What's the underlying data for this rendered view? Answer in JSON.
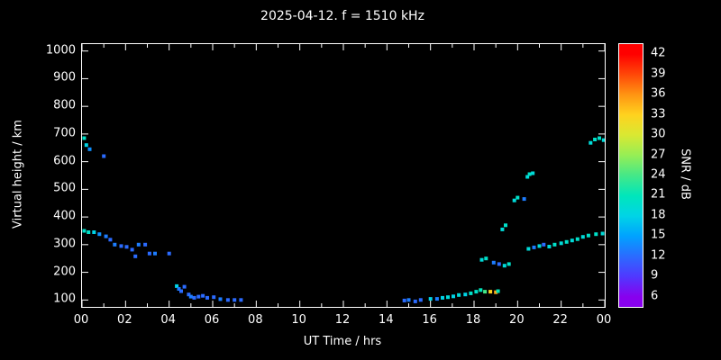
{
  "title": "2025-04-12. f = 1510 kHz",
  "axes": {
    "xlabel": "UT Time / hrs",
    "ylabel": "Virtual height / km",
    "x_tick_labels": [
      "00",
      "02",
      "04",
      "06",
      "08",
      "10",
      "12",
      "14",
      "16",
      "18",
      "20",
      "22",
      "00"
    ],
    "x_tick_values": [
      0,
      2,
      4,
      6,
      8,
      10,
      12,
      14,
      16,
      18,
      20,
      22,
      24
    ],
    "x_minor_step": 1,
    "y_tick_labels": [
      "100",
      "200",
      "300",
      "400",
      "500",
      "600",
      "700",
      "800",
      "900",
      "1000"
    ],
    "y_tick_values": [
      100,
      200,
      300,
      400,
      500,
      600,
      700,
      800,
      900,
      1000
    ],
    "background": "#000000",
    "axis_color": "#ffffff"
  },
  "colorbar": {
    "label": "SNR / dB",
    "tick_values": [
      6,
      9,
      12,
      15,
      18,
      21,
      24,
      27,
      30,
      33,
      36,
      39,
      42
    ],
    "value_min": 4.5,
    "value_max": 43.5,
    "stops": [
      {
        "v": 6,
        "c": "#8800ee"
      },
      {
        "v": 9,
        "c": "#5038ff"
      },
      {
        "v": 12,
        "c": "#2b6bff"
      },
      {
        "v": 15,
        "c": "#00a2ff"
      },
      {
        "v": 18,
        "c": "#00d4e6"
      },
      {
        "v": 21,
        "c": "#00e6bb"
      },
      {
        "v": 24,
        "c": "#44e888"
      },
      {
        "v": 27,
        "c": "#96ee55"
      },
      {
        "v": 30,
        "c": "#d9e832"
      },
      {
        "v": 33,
        "c": "#ffd21e"
      },
      {
        "v": 36,
        "c": "#ff9412"
      },
      {
        "v": 39,
        "c": "#ff4708"
      },
      {
        "v": 42,
        "c": "#ff0000"
      }
    ]
  },
  "chart_data": {
    "type": "scatter",
    "title": "2025-04-12. f = 1510 kHz",
    "xlabel": "UT Time / hrs",
    "ylabel": "Virtual height / km",
    "xlim": [
      0,
      24
    ],
    "ylim": [
      75,
      1025
    ],
    "grid": false,
    "legend": "colorbar SNR / dB, range 6-42",
    "point_fields": [
      "time_ut_hrs",
      "virtual_height_km",
      "snr_db"
    ],
    "points": [
      [
        0.1,
        685,
        20
      ],
      [
        0.2,
        660,
        18
      ],
      [
        0.35,
        645,
        14
      ],
      [
        1.0,
        620,
        12
      ],
      [
        0.1,
        350,
        20
      ],
      [
        0.3,
        345,
        20
      ],
      [
        0.55,
        345,
        18
      ],
      [
        0.8,
        338,
        14
      ],
      [
        1.1,
        330,
        13
      ],
      [
        1.3,
        318,
        12
      ],
      [
        1.5,
        300,
        13
      ],
      [
        1.8,
        295,
        12
      ],
      [
        2.05,
        292,
        12
      ],
      [
        2.3,
        282,
        12
      ],
      [
        2.45,
        258,
        12
      ],
      [
        2.6,
        300,
        13
      ],
      [
        2.9,
        300,
        12
      ],
      [
        3.1,
        268,
        12
      ],
      [
        3.35,
        268,
        13
      ],
      [
        4.0,
        268,
        12
      ],
      [
        4.35,
        150,
        18
      ],
      [
        4.45,
        140,
        13
      ],
      [
        4.55,
        132,
        12
      ],
      [
        4.7,
        148,
        12
      ],
      [
        4.9,
        120,
        12
      ],
      [
        5.0,
        112,
        13
      ],
      [
        5.15,
        108,
        12
      ],
      [
        5.35,
        112,
        12
      ],
      [
        5.55,
        115,
        12
      ],
      [
        5.75,
        108,
        12
      ],
      [
        6.05,
        110,
        12
      ],
      [
        6.35,
        103,
        13
      ],
      [
        6.7,
        100,
        12
      ],
      [
        7.0,
        100,
        12
      ],
      [
        7.3,
        100,
        12
      ],
      [
        14.8,
        98,
        12
      ],
      [
        15.0,
        100,
        13
      ],
      [
        15.3,
        95,
        12
      ],
      [
        15.55,
        100,
        12
      ],
      [
        16.0,
        104,
        18
      ],
      [
        16.3,
        104,
        13
      ],
      [
        16.55,
        108,
        18
      ],
      [
        16.8,
        110,
        19
      ],
      [
        17.05,
        113,
        18
      ],
      [
        17.3,
        118,
        19
      ],
      [
        17.6,
        120,
        18
      ],
      [
        17.85,
        124,
        20
      ],
      [
        18.1,
        130,
        20
      ],
      [
        18.3,
        136,
        21
      ],
      [
        18.5,
        130,
        24
      ],
      [
        18.75,
        130,
        33
      ],
      [
        19.0,
        128,
        35
      ],
      [
        19.1,
        132,
        21
      ],
      [
        18.35,
        245,
        19
      ],
      [
        18.55,
        250,
        20
      ],
      [
        18.9,
        235,
        13
      ],
      [
        19.15,
        230,
        12
      ],
      [
        19.4,
        224,
        19
      ],
      [
        19.6,
        230,
        20
      ],
      [
        19.3,
        355,
        19
      ],
      [
        19.45,
        370,
        20
      ],
      [
        19.85,
        460,
        19
      ],
      [
        20.0,
        470,
        20
      ],
      [
        20.3,
        465,
        13
      ],
      [
        20.45,
        545,
        19
      ],
      [
        20.55,
        555,
        20
      ],
      [
        20.7,
        558,
        19
      ],
      [
        20.5,
        285,
        19
      ],
      [
        20.75,
        290,
        13
      ],
      [
        21.0,
        295,
        19
      ],
      [
        21.2,
        300,
        12
      ],
      [
        21.45,
        293,
        19
      ],
      [
        21.7,
        300,
        20
      ],
      [
        22.0,
        305,
        19
      ],
      [
        22.25,
        310,
        20
      ],
      [
        22.5,
        315,
        19
      ],
      [
        22.75,
        320,
        20
      ],
      [
        23.0,
        328,
        19
      ],
      [
        23.25,
        333,
        20
      ],
      [
        23.6,
        338,
        20
      ],
      [
        23.9,
        340,
        19
      ],
      [
        23.35,
        668,
        19
      ],
      [
        23.55,
        680,
        20
      ],
      [
        23.75,
        685,
        20
      ],
      [
        23.95,
        678,
        19
      ]
    ]
  }
}
